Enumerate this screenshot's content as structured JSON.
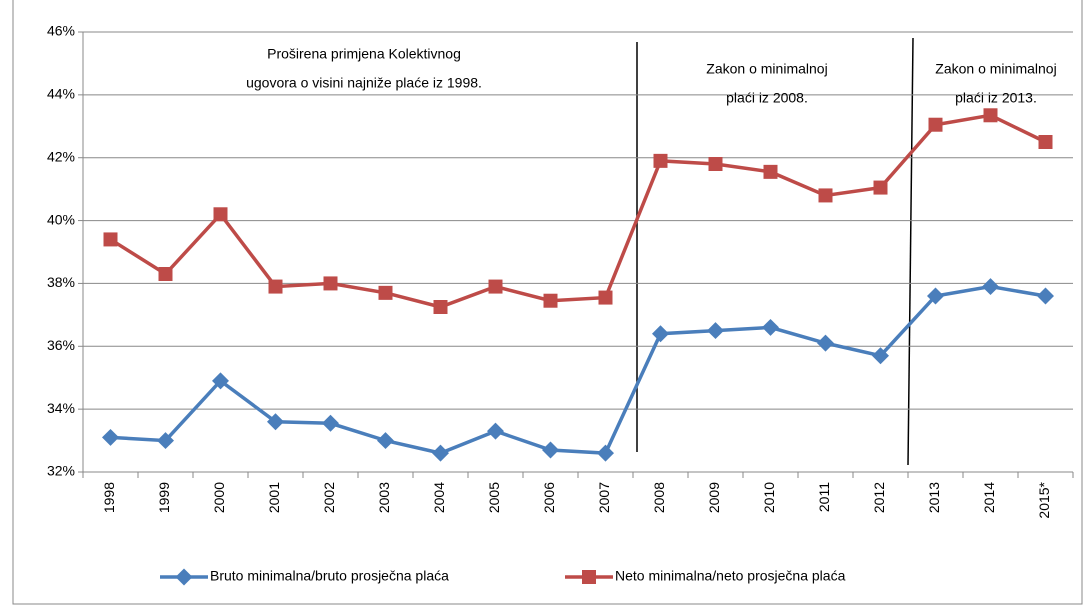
{
  "chart_data": {
    "type": "line",
    "categories": [
      "1998",
      "1999",
      "2000",
      "2001",
      "2002",
      "2003",
      "2004",
      "2005",
      "2006",
      "2007",
      "2008",
      "2009",
      "2010",
      "2011",
      "2012",
      "2013",
      "2014",
      "2015*"
    ],
    "series": [
      {
        "name": "Bruto minimalna/bruto  prosječna plaća",
        "color": "#4a7ebb",
        "values": [
          33.1,
          33.0,
          34.9,
          33.6,
          33.55,
          33.0,
          32.6,
          33.3,
          32.7,
          32.6,
          36.4,
          36.5,
          36.6,
          36.1,
          35.7,
          37.6,
          37.9,
          37.6
        ]
      },
      {
        "name": "Neto minimalna/neto  prosječna plaća",
        "color": "#be4b48",
        "values": [
          39.4,
          38.3,
          40.2,
          37.9,
          38.0,
          37.7,
          37.25,
          37.9,
          37.45,
          37.55,
          41.9,
          41.8,
          41.55,
          40.8,
          41.05,
          43.05,
          43.35,
          42.5
        ]
      }
    ],
    "ylim": [
      32,
      46
    ],
    "yticks": [
      {
        "value": 32,
        "label": "32%"
      },
      {
        "value": 34,
        "label": "34%"
      },
      {
        "value": 36,
        "label": "36%"
      },
      {
        "value": 38,
        "label": "38%"
      },
      {
        "value": 40,
        "label": "40%"
      },
      {
        "value": 42,
        "label": "42%"
      },
      {
        "value": 44,
        "label": "44%"
      },
      {
        "value": 46,
        "label": "46%"
      }
    ],
    "grid": true,
    "legend": "bottom",
    "annotations": [
      {
        "lines": [
          "Proširena primjena Kolektivnog",
          "ugovora o visini najniže plaće iz 1998."
        ]
      },
      {
        "lines": [
          "Zakon o minimalnoj",
          "plaći iz 2008."
        ]
      },
      {
        "lines": [
          "Zakon o minimalnoj",
          "plaći iz 2013."
        ]
      }
    ]
  }
}
